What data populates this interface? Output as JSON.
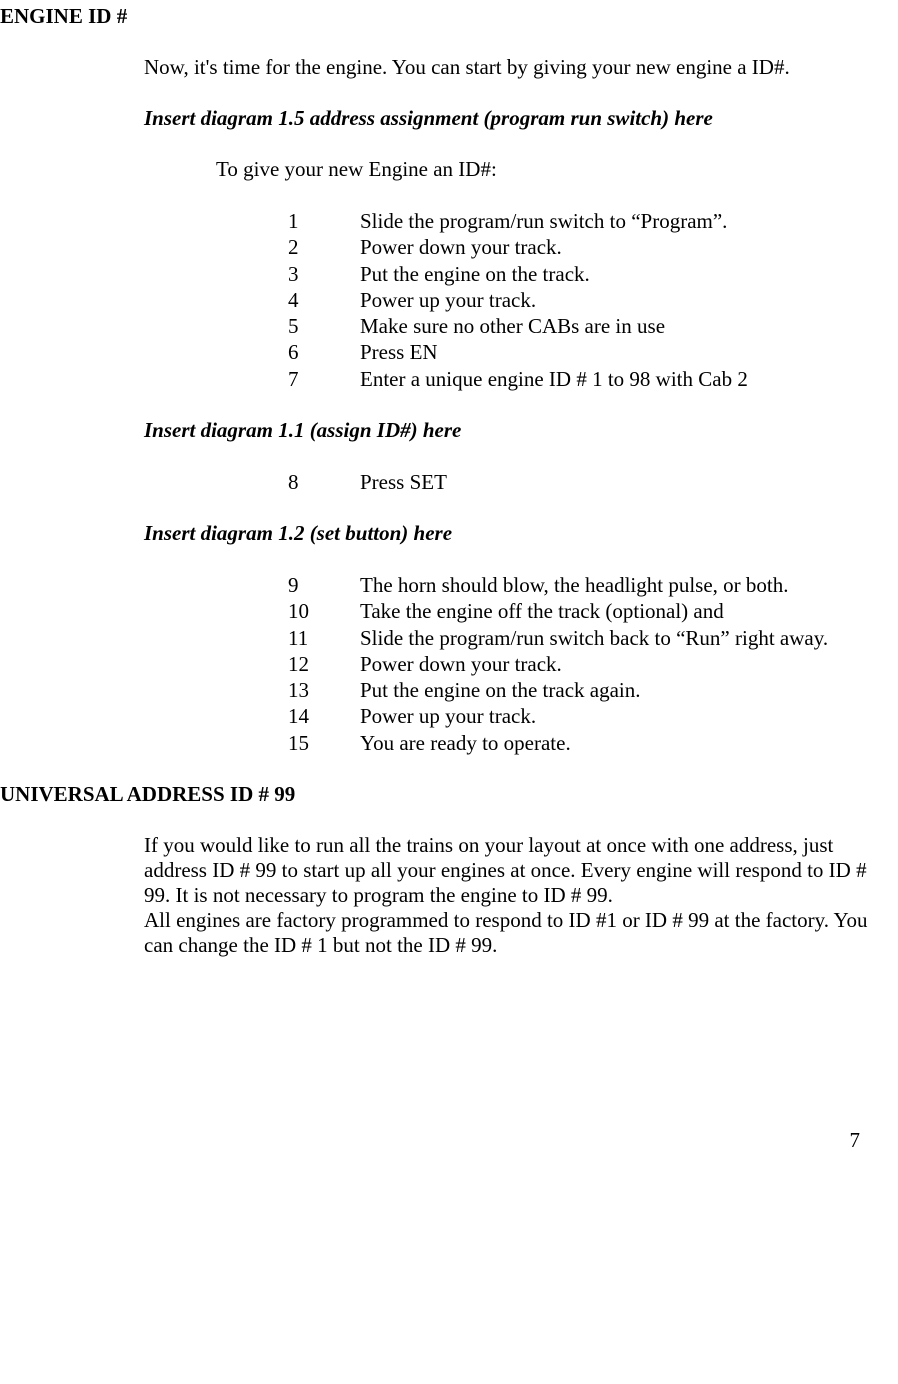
{
  "section1": {
    "heading": "ENGINE ID #",
    "intro": "Now, it's time for the engine. You can start by giving your new engine a ID#.",
    "note1": "Insert diagram 1.5 address assignment (program run switch) here",
    "subintro": "To give your new Engine an ID#:",
    "steps_a": [
      {
        "n": "1",
        "t": "Slide the program/run switch to “Program”."
      },
      {
        "n": "2",
        "t": "Power down your track."
      },
      {
        "n": "3",
        "t": "Put the engine on the track."
      },
      {
        "n": "4",
        "t": "Power up your track."
      },
      {
        "n": "5",
        "t": "Make sure no other CABs are in use"
      },
      {
        "n": "6",
        "t": "Press EN"
      },
      {
        "n": "7",
        "t": "Enter a unique engine ID # 1 to 98 with Cab 2"
      }
    ],
    "note2": "Insert diagram 1.1 (assign ID#) here",
    "steps_b": [
      {
        "n": "8",
        "t": "Press SET"
      }
    ],
    "note3": "Insert diagram 1.2 (set button) here",
    "steps_c": [
      {
        "n": "9",
        "t": "The horn should blow, the headlight pulse, or both."
      },
      {
        "n": "10",
        "t": "Take the engine off the track (optional) and"
      },
      {
        "n": "11",
        "t": "Slide the program/run switch back to “Run” right away."
      },
      {
        "n": "12",
        "t": "Power down your track."
      },
      {
        "n": "13",
        "t": "Put the engine on the track again."
      },
      {
        "n": "14",
        "t": "Power up your track."
      },
      {
        "n": "15",
        "t": "You are ready to operate."
      }
    ]
  },
  "section2": {
    "heading": "UNIVERSAL ADDRESS ID # 99",
    "para1": "If you would like to run all the trains on your layout at once with one address, just address ID # 99 to start up all your engines at once. Every engine will respond to ID # 99. It is not necessary to program the engine to ID # 99.",
    "para2": "All engines are factory programmed to respond to ID #1 or ID # 99 at the factory. You can change the ID # 1 but not the ID # 99."
  },
  "page_number": "7"
}
